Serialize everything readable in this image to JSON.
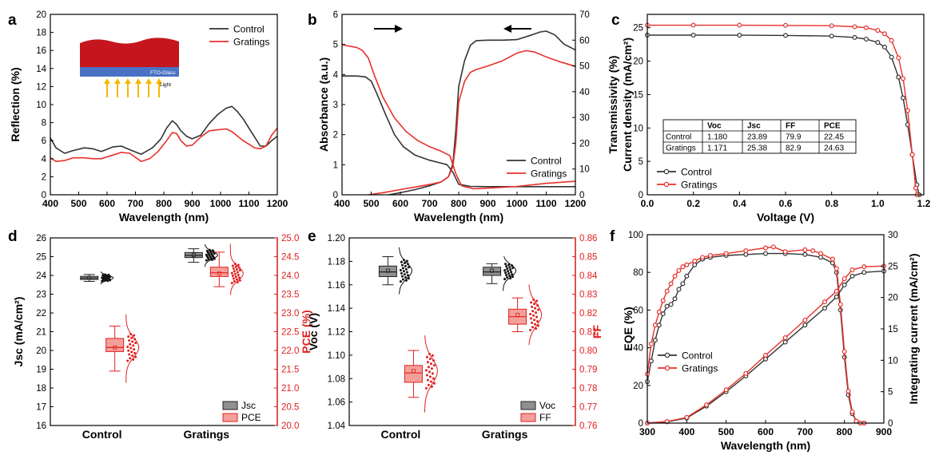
{
  "colors": {
    "control": "#333333",
    "gratings": "#e8302a",
    "red_axis": "#e02020",
    "box_gray": "#909090",
    "box_red": "#f4a09a"
  },
  "chart_data": [
    {
      "id": "a",
      "type": "line",
      "xlabel": "Wavelength (nm)",
      "ylabel": "Reflection (%)",
      "xlim": [
        400,
        1200
      ],
      "ylim": [
        0,
        20
      ],
      "xticks": [
        400,
        500,
        600,
        700,
        800,
        900,
        1000,
        1100,
        1200
      ],
      "yticks": [
        0,
        2,
        4,
        6,
        8,
        10,
        12,
        14,
        16,
        18,
        20
      ],
      "legend_position": "top-right",
      "inset_labels": [
        "FTO-Glass",
        "Light"
      ],
      "series": [
        {
          "name": "Control",
          "x": [
            400,
            420,
            450,
            480,
            520,
            550,
            580,
            620,
            650,
            680,
            720,
            760,
            790,
            810,
            830,
            845,
            860,
            880,
            900,
            930,
            960,
            990,
            1020,
            1040,
            1060,
            1080,
            1100,
            1120,
            1140,
            1160,
            1180,
            1200
          ],
          "y": [
            6.3,
            5.2,
            4.6,
            4.9,
            5.2,
            5.1,
            4.8,
            5.3,
            5.4,
            5.0,
            4.5,
            5.2,
            6.2,
            7.4,
            8.2,
            7.8,
            7.1,
            6.5,
            6.2,
            6.6,
            7.9,
            8.9,
            9.6,
            9.8,
            9.2,
            8.4,
            7.4,
            6.4,
            5.4,
            5.4,
            6.0,
            6.5
          ]
        },
        {
          "name": "Gratings",
          "x": [
            400,
            420,
            450,
            480,
            520,
            550,
            580,
            620,
            650,
            680,
            720,
            750,
            780,
            810,
            830,
            845,
            860,
            880,
            900,
            930,
            960,
            990,
            1020,
            1040,
            1060,
            1080,
            1100,
            1120,
            1140,
            1160,
            1180,
            1200
          ],
          "y": [
            4.1,
            3.7,
            3.8,
            4.1,
            4.1,
            4.0,
            4.0,
            4.4,
            4.7,
            4.6,
            3.7,
            4.0,
            4.8,
            6.0,
            6.9,
            6.8,
            6.0,
            5.4,
            5.5,
            6.4,
            7.1,
            7.2,
            7.3,
            7.0,
            6.5,
            6.0,
            5.6,
            5.2,
            5.1,
            5.4,
            6.6,
            7.4
          ]
        }
      ]
    },
    {
      "id": "b",
      "type": "line",
      "xlabel": "Wavelength (nm)",
      "ylabel": "Absorbance (a.u.)",
      "y2label": "Transmissivity (%)",
      "xlim": [
        400,
        1200
      ],
      "ylim": [
        0,
        6
      ],
      "y2lim": [
        0,
        70
      ],
      "xticks": [
        400,
        500,
        600,
        700,
        800,
        900,
        1000,
        1100,
        1200
      ],
      "yticks": [
        0,
        1,
        2,
        3,
        4,
        5,
        6
      ],
      "y2ticks": [
        0,
        10,
        20,
        30,
        40,
        50,
        60,
        70
      ],
      "legend_position": "bottom-right",
      "series": [
        {
          "name": "Control",
          "axis": "left",
          "x": [
            400,
            450,
            480,
            500,
            520,
            550,
            580,
            610,
            650,
            700,
            740,
            760,
            780,
            800,
            840,
            900,
            1000,
            1100,
            1200
          ],
          "y": [
            3.95,
            3.95,
            3.92,
            3.78,
            3.35,
            2.65,
            2.0,
            1.6,
            1.32,
            1.15,
            1.05,
            1.0,
            0.75,
            0.35,
            0.28,
            0.27,
            0.27,
            0.27,
            0.27
          ]
        },
        {
          "name": "Gratings",
          "axis": "left",
          "x": [
            400,
            420,
            450,
            470,
            490,
            510,
            540,
            580,
            620,
            660,
            700,
            740,
            770,
            790,
            810,
            850,
            900,
            1000,
            1100,
            1200
          ],
          "y": [
            5.0,
            4.95,
            4.9,
            4.8,
            4.55,
            4.0,
            3.25,
            2.55,
            2.1,
            1.8,
            1.6,
            1.45,
            1.3,
            0.7,
            0.3,
            0.2,
            0.22,
            0.28,
            0.38,
            0.45
          ]
        },
        {
          "name": "Control",
          "axis": "right",
          "x": [
            560,
            600,
            650,
            700,
            740,
            765,
            780,
            790,
            800,
            820,
            840,
            860,
            900,
            950,
            1000,
            1050,
            1080,
            1100,
            1130,
            1160,
            1200
          ],
          "y": [
            0,
            0.8,
            2.0,
            3.5,
            5.0,
            7.0,
            12.0,
            25.0,
            42.0,
            52.0,
            58.0,
            59.8,
            60.0,
            60.0,
            60.2,
            62.0,
            63.2,
            63.5,
            62.0,
            58.5,
            56.2
          ]
        },
        {
          "name": "Gratings",
          "axis": "right",
          "x": [
            490,
            540,
            600,
            650,
            700,
            740,
            765,
            780,
            790,
            800,
            820,
            840,
            860,
            900,
            950,
            1000,
            1030,
            1060,
            1100,
            1150,
            1200
          ],
          "y": [
            0,
            0.8,
            2.0,
            3.0,
            4.0,
            5.0,
            7.0,
            11.0,
            20.0,
            36.0,
            44.0,
            47.5,
            48.6,
            50.0,
            52.0,
            55.0,
            55.9,
            55.4,
            53.5,
            51.5,
            49.8
          ]
        }
      ]
    },
    {
      "id": "c",
      "type": "line",
      "xlabel": "Voltage (V)",
      "ylabel": "Current density (mA/cm²)",
      "xlim": [
        0,
        1.2
      ],
      "ylim": [
        0,
        27
      ],
      "xticks": [
        0.0,
        0.2,
        0.4,
        0.6,
        0.8,
        1.0,
        1.2
      ],
      "yticks": [
        0,
        5,
        10,
        15,
        20,
        25
      ],
      "legend_position": "bottom-left",
      "series": [
        {
          "name": "Control",
          "x": [
            0,
            0.2,
            0.4,
            0.6,
            0.8,
            0.9,
            0.95,
            1.0,
            1.03,
            1.06,
            1.09,
            1.11,
            1.13,
            1.15,
            1.17,
            1.18
          ],
          "y": [
            23.89,
            23.89,
            23.88,
            23.85,
            23.75,
            23.55,
            23.3,
            22.8,
            22.1,
            20.6,
            17.6,
            14.5,
            10.5,
            6.0,
            1.5,
            0
          ]
        },
        {
          "name": "Gratings",
          "x": [
            0,
            0.2,
            0.4,
            0.6,
            0.8,
            0.9,
            0.95,
            1.0,
            1.03,
            1.06,
            1.09,
            1.11,
            1.13,
            1.15,
            1.165,
            1.171
          ],
          "y": [
            25.38,
            25.38,
            25.38,
            25.35,
            25.3,
            25.15,
            25.0,
            24.6,
            24.1,
            23.1,
            20.5,
            17.4,
            12.6,
            6.0,
            1.0,
            0
          ]
        }
      ],
      "table": {
        "columns": [
          "",
          "Voc",
          "Jsc",
          "FF",
          "PCE"
        ],
        "rows": [
          [
            "Control",
            "1.180",
            "23.89",
            "79.9",
            "22.45"
          ],
          [
            "Gratings",
            "1.171",
            "25.38",
            "82.9",
            "24.63"
          ]
        ]
      }
    },
    {
      "id": "d",
      "type": "box",
      "categories": [
        "Control",
        "Gratings"
      ],
      "ylabel": "Jsc (mA/cm²)",
      "y2label": "PCE (%)",
      "ylim": [
        16,
        26
      ],
      "y2lim": [
        20.0,
        25.0
      ],
      "yticks": [
        16,
        17,
        18,
        19,
        20,
        21,
        22,
        23,
        24,
        25,
        26
      ],
      "y2ticks": [
        20.0,
        20.5,
        21.0,
        21.5,
        22.0,
        22.5,
        23.0,
        23.5,
        24.0,
        24.5,
        25.0
      ],
      "legend_position": "bottom-right",
      "series": [
        {
          "name": "Jsc",
          "axis": "left",
          "boxes": [
            {
              "min": 23.68,
              "q1": 23.78,
              "median": 23.86,
              "q3": 23.95,
              "max": 24.05,
              "mean": 23.87
            },
            {
              "min": 24.7,
              "q1": 24.95,
              "median": 25.07,
              "q3": 25.22,
              "max": 25.42,
              "mean": 25.08
            }
          ]
        },
        {
          "name": "PCE",
          "axis": "right",
          "boxes": [
            {
              "min": 21.45,
              "q1": 21.97,
              "median": 22.08,
              "q3": 22.32,
              "max": 22.65,
              "mean": 22.08
            },
            {
              "min": 23.7,
              "q1": 23.97,
              "median": 24.07,
              "q3": 24.22,
              "max": 24.62,
              "mean": 24.05
            }
          ]
        }
      ]
    },
    {
      "id": "e",
      "type": "box",
      "categories": [
        "Control",
        "Gratings"
      ],
      "ylabel": "Voc (V)",
      "y2label": "FF",
      "ylim": [
        1.04,
        1.2
      ],
      "y2lim": [
        0.76,
        0.86
      ],
      "yticks": [
        1.04,
        1.06,
        1.08,
        1.1,
        1.12,
        1.14,
        1.16,
        1.18,
        1.2
      ],
      "y2ticks": [
        0.76,
        0.77,
        0.78,
        0.79,
        0.8,
        0.81,
        0.82,
        0.83,
        0.84,
        0.85,
        0.86
      ],
      "legend_position": "bottom-right",
      "series": [
        {
          "name": "Voc",
          "axis": "left",
          "boxes": [
            {
              "min": 1.16,
              "q1": 1.167,
              "median": 1.171,
              "q3": 1.176,
              "max": 1.184,
              "mean": 1.172
            },
            {
              "min": 1.161,
              "q1": 1.168,
              "median": 1.171,
              "q3": 1.175,
              "max": 1.178,
              "mean": 1.172
            }
          ]
        },
        {
          "name": "FF",
          "axis": "right",
          "boxes": [
            {
              "min": 0.775,
              "q1": 0.783,
              "median": 0.788,
              "q3": 0.792,
              "max": 0.8,
              "mean": 0.789
            },
            {
              "min": 0.81,
              "q1": 0.814,
              "median": 0.818,
              "q3": 0.822,
              "max": 0.828,
              "mean": 0.819
            }
          ]
        }
      ]
    },
    {
      "id": "f",
      "type": "line",
      "xlabel": "Wavelength (nm)",
      "ylabel": "EQE (%)",
      "y2label": "Integrating current (mA/cm²)",
      "xlim": [
        300,
        900
      ],
      "ylim": [
        0,
        100
      ],
      "y2lim": [
        0,
        30
      ],
      "xticks": [
        300,
        400,
        500,
        600,
        700,
        800,
        900
      ],
      "yticks": [
        0,
        20,
        40,
        60,
        80,
        100
      ],
      "y2ticks": [
        0,
        5,
        10,
        15,
        20,
        25,
        30
      ],
      "legend_position": "bottom-left",
      "series": [
        {
          "name": "Control",
          "axis": "left",
          "x": [
            300,
            310,
            320,
            330,
            340,
            350,
            360,
            370,
            380,
            390,
            400,
            420,
            440,
            460,
            500,
            550,
            600,
            650,
            700,
            740,
            770,
            780,
            790,
            800,
            810,
            820,
            830,
            840,
            850
          ],
          "y": [
            22,
            33,
            44,
            52,
            58,
            62,
            63,
            66,
            71,
            74,
            78,
            84,
            87,
            88,
            89,
            89.5,
            90,
            90,
            89.5,
            88,
            85,
            80,
            60,
            35,
            15,
            5,
            1,
            0,
            0
          ]
        },
        {
          "name": "Gratings",
          "axis": "left",
          "x": [
            300,
            310,
            320,
            330,
            340,
            350,
            360,
            370,
            380,
            390,
            400,
            420,
            440,
            460,
            500,
            550,
            600,
            620,
            650,
            700,
            720,
            740,
            770,
            780,
            790,
            800,
            810,
            820,
            830,
            840,
            850
          ],
          "y": [
            26,
            42,
            52,
            59,
            65,
            70,
            74,
            78,
            81,
            83,
            84,
            86,
            88,
            89,
            90,
            91.5,
            93,
            93.5,
            91,
            92,
            91.5,
            90,
            87,
            82,
            63,
            38,
            17,
            6,
            1,
            0,
            0
          ]
        },
        {
          "name": "Control",
          "axis": "right",
          "x": [
            300,
            350,
            400,
            450,
            500,
            550,
            600,
            650,
            700,
            750,
            780,
            800,
            820,
            850,
            900
          ],
          "y": [
            0,
            0.2,
            0.8,
            2.7,
            5.0,
            7.5,
            10.2,
            12.9,
            15.6,
            18.3,
            20.1,
            22.0,
            23.4,
            24.0,
            24.2
          ]
        },
        {
          "name": "Gratings",
          "axis": "right",
          "x": [
            300,
            350,
            400,
            450,
            500,
            550,
            600,
            650,
            700,
            750,
            780,
            800,
            820,
            850,
            900
          ],
          "y": [
            0,
            0.25,
            0.9,
            2.9,
            5.3,
            7.9,
            10.8,
            13.6,
            16.4,
            19.3,
            21.0,
            23.0,
            24.4,
            24.9,
            25.0
          ]
        }
      ]
    }
  ]
}
